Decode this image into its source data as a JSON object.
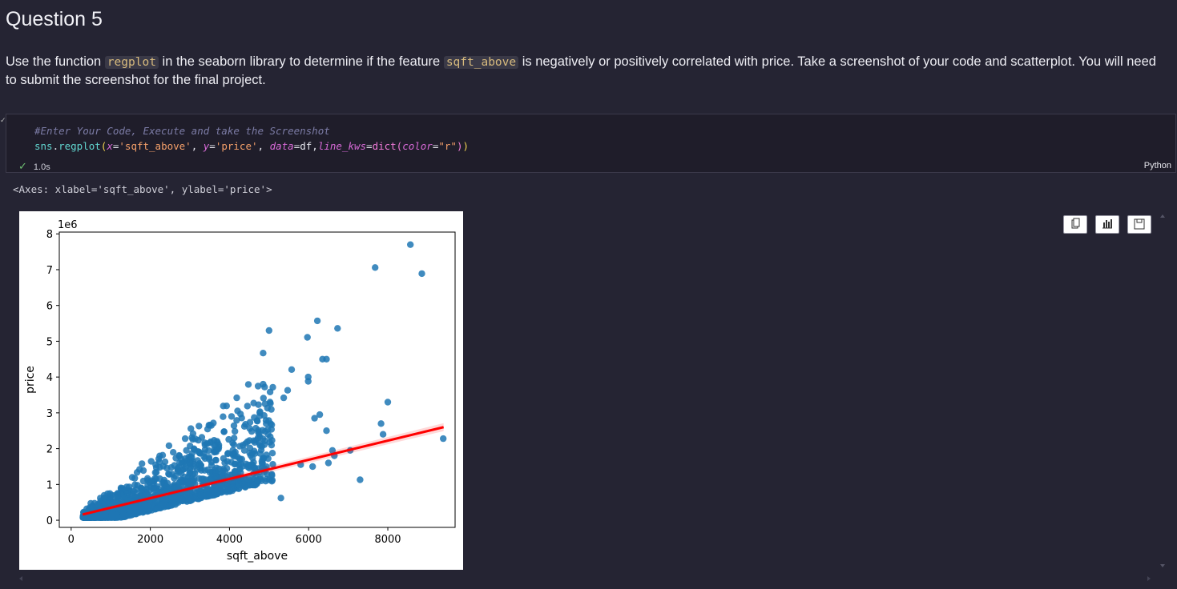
{
  "question": {
    "title": "Question 5",
    "text_1": "Use the function ",
    "code_1": "regplot",
    "text_2": " in the seaborn library to determine if the feature ",
    "code_2": "sqft_above",
    "text_3": " is negatively or positively correlated with price. Take a screenshot of your code and scatterplot. You will need",
    "line_2": "to submit the screenshot for the final project."
  },
  "cell": {
    "comment": "#Enter Your Code, Execute and take the Screenshot",
    "code_tokens": {
      "module": "sns",
      "dot": ".",
      "function": "regplot",
      "open": "(",
      "kw_x": "x",
      "eq1": "=",
      "val_x": "'sqft_above'",
      "sep1": ", ",
      "kw_y": "y",
      "eq2": "=",
      "val_y": "'price'",
      "sep2": ", ",
      "kw_data": "data",
      "eq3": "=",
      "val_data": "df",
      "sep3": ",",
      "kw_line": "line_kws",
      "eq4": "=",
      "dict_fn": "dict",
      "open2": "(",
      "kw_color": "color",
      "eq5": "=",
      "val_color": "\"r\"",
      "close2": ")",
      "close": ")"
    },
    "status_check": "✓",
    "exec_time": "1.0s",
    "language": "Python"
  },
  "output": {
    "repr": "<Axes: xlabel='sqft_above', ylabel='price'>"
  },
  "toolbar": {
    "copy_icon": "copy-icon",
    "chart_icon": "chart-icon",
    "save_icon": "save-icon"
  },
  "chart_data": {
    "type": "scatter",
    "title": "",
    "xlabel": "sqft_above",
    "ylabel": "price",
    "offset_label": "1e6",
    "xlim": [
      -300,
      9700
    ],
    "ylim": [
      -0.2,
      8.05
    ],
    "xticks": [
      0,
      2000,
      4000,
      6000,
      8000
    ],
    "xtick_labels": [
      "0",
      "2000",
      "4000",
      "6000",
      "8000"
    ],
    "yticks": [
      0,
      1,
      2,
      3,
      4,
      5,
      6,
      7,
      8
    ],
    "ytick_labels": [
      "0",
      "1",
      "2",
      "3",
      "4",
      "5",
      "6",
      "7",
      "8"
    ],
    "point_color": "#1f77b4",
    "line_color": "#ff0000",
    "grid": false,
    "regression_line": {
      "x": [
        290,
        9410
      ],
      "y": [
        0.16,
        2.6
      ]
    },
    "outliers": {
      "x": [
        8570,
        7680,
        8860,
        5000,
        6220,
        6730,
        5970,
        4850,
        6450,
        6350,
        5570,
        5990,
        5990,
        5470,
        5370,
        8000,
        7830,
        7880,
        9400,
        7300,
        7050,
        6280,
        6150,
        6450,
        6100,
        5800,
        5300,
        6500,
        6600,
        6650,
        4850
      ],
      "y": [
        7.7,
        7.06,
        6.89,
        5.3,
        5.57,
        5.36,
        5.11,
        4.67,
        4.5,
        4.5,
        4.21,
        4.0,
        3.88,
        3.63,
        3.42,
        3.3,
        2.7,
        2.4,
        2.28,
        1.13,
        1.95,
        2.95,
        2.85,
        2.5,
        1.5,
        1.55,
        0.62,
        1.6,
        1.95,
        1.8,
        3.8
      ]
    }
  }
}
